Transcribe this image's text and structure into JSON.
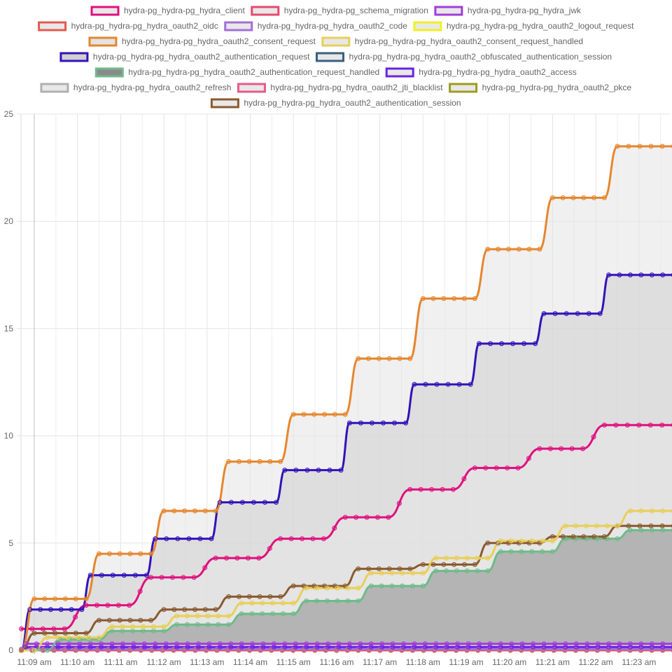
{
  "chart_data": {
    "type": "area",
    "stacked": false,
    "legend_position": "top",
    "grid": true,
    "x_labels": [
      "11:09 am",
      "11:10 am",
      "11:11 am",
      "11:12 am",
      "11:13 am",
      "11:14 am",
      "11:15 am",
      "11:16 am",
      "11:17 am",
      "11:18 am",
      "11:19 am",
      "11:20 am",
      "11:21 am",
      "11:22 am",
      "11:23 am"
    ],
    "ylim": [
      0,
      25
    ],
    "y_ticks": [
      0,
      5,
      10,
      15,
      20,
      25
    ],
    "x_minutes_range": [
      -0.3,
      14.8
    ],
    "series": [
      {
        "name": "hydra-pg_hydra-pg_hydra_client",
        "color": "#e0107e",
        "fill": "#e8e8e8",
        "points": [
          [
            -0.3,
            1.0
          ],
          [
            0.7,
            1.0
          ],
          [
            1.2,
            2.1
          ],
          [
            2.2,
            2.1
          ],
          [
            2.7,
            3.4
          ],
          [
            3.7,
            3.4
          ],
          [
            4.2,
            4.3
          ],
          [
            5.2,
            4.3
          ],
          [
            5.7,
            5.2
          ],
          [
            6.7,
            5.2
          ],
          [
            7.2,
            6.2
          ],
          [
            8.2,
            6.2
          ],
          [
            8.7,
            7.5
          ],
          [
            9.7,
            7.5
          ],
          [
            10.2,
            8.5
          ],
          [
            11.2,
            8.5
          ],
          [
            11.7,
            9.4
          ],
          [
            12.7,
            9.4
          ],
          [
            13.2,
            10.5
          ],
          [
            14.8,
            10.5
          ]
        ]
      },
      {
        "name": "hydra-pg_hydra-pg_schema_migration",
        "color": "#e8486e",
        "fill": "#e8e8e8",
        "points": [
          [
            -0.3,
            0.02
          ],
          [
            14.8,
            0.02
          ]
        ]
      },
      {
        "name": "hydra-pg_hydra-pg_hydra_jwk",
        "color": "#a33bdc",
        "fill": "#e8e8e8",
        "points": [
          [
            -0.3,
            0.0
          ],
          [
            -0.2,
            0.3
          ],
          [
            14.8,
            0.3
          ]
        ]
      },
      {
        "name": "hydra-pg_hydra-pg_hydra_oauth2_oidc",
        "color": "#e55a50",
        "fill": "#e8e8e8",
        "points": [
          [
            -0.3,
            0.0
          ],
          [
            14.8,
            0.0
          ]
        ]
      },
      {
        "name": "hydra-pg_hydra-pg_hydra_oauth2_code",
        "color": "#a26fd8",
        "fill": "#e8e8e8",
        "points": [
          [
            -0.3,
            0.05
          ],
          [
            14.8,
            0.05
          ]
        ]
      },
      {
        "name": "hydra-pg_hydra-pg_hydra_oauth2_logout_request",
        "color": "#f0f022",
        "fill": "#e8e8e8",
        "points": [
          [
            -0.3,
            0.0
          ],
          [
            14.8,
            0.0
          ]
        ]
      },
      {
        "name": "hydra-pg_hydra-pg_hydra_oauth2_consent_request",
        "color": "#e6862e",
        "fill": "#e3e3e3",
        "points": [
          [
            -0.3,
            0.0
          ],
          [
            0.0,
            2.4
          ],
          [
            1.2,
            2.4
          ],
          [
            1.5,
            4.5
          ],
          [
            2.7,
            4.5
          ],
          [
            3.0,
            6.5
          ],
          [
            4.2,
            6.5
          ],
          [
            4.5,
            8.8
          ],
          [
            5.7,
            8.8
          ],
          [
            6.0,
            11.0
          ],
          [
            7.2,
            11.0
          ],
          [
            7.5,
            13.6
          ],
          [
            8.7,
            13.6
          ],
          [
            9.0,
            16.4
          ],
          [
            10.2,
            16.4
          ],
          [
            10.5,
            18.7
          ],
          [
            11.7,
            18.7
          ],
          [
            12.0,
            21.1
          ],
          [
            13.2,
            21.1
          ],
          [
            13.5,
            23.5
          ],
          [
            14.8,
            23.5
          ]
        ]
      },
      {
        "name": "hydra-pg_hydra-pg_hydra_oauth2_consent_request_handled",
        "color": "#e8cf5a",
        "fill": "#e8e8e8",
        "points": [
          [
            -0.3,
            0.0
          ],
          [
            0.0,
            0.0
          ],
          [
            0.3,
            0.6
          ],
          [
            1.5,
            0.6
          ],
          [
            1.8,
            1.1
          ],
          [
            3.0,
            1.1
          ],
          [
            3.3,
            1.6
          ],
          [
            4.5,
            1.6
          ],
          [
            4.8,
            2.2
          ],
          [
            6.0,
            2.2
          ],
          [
            6.3,
            2.9
          ],
          [
            7.5,
            2.9
          ],
          [
            7.8,
            3.6
          ],
          [
            9.0,
            3.6
          ],
          [
            9.3,
            4.3
          ],
          [
            10.5,
            4.3
          ],
          [
            10.8,
            5.1
          ],
          [
            12.0,
            5.1
          ],
          [
            12.3,
            5.8
          ],
          [
            13.5,
            5.8
          ],
          [
            13.8,
            6.5
          ],
          [
            14.8,
            6.5
          ]
        ]
      },
      {
        "name": "hydra-pg_hydra-pg_hydra_oauth2_authentication_request",
        "color": "#3412b8",
        "fill": "#d0d0d0",
        "points": [
          [
            -0.3,
            0.0
          ],
          [
            -0.1,
            1.9
          ],
          [
            1.1,
            1.9
          ],
          [
            1.3,
            3.5
          ],
          [
            2.6,
            3.5
          ],
          [
            2.8,
            5.2
          ],
          [
            4.1,
            5.2
          ],
          [
            4.3,
            6.9
          ],
          [
            5.6,
            6.9
          ],
          [
            5.8,
            8.4
          ],
          [
            7.1,
            8.4
          ],
          [
            7.3,
            10.6
          ],
          [
            8.6,
            10.6
          ],
          [
            8.8,
            12.4
          ],
          [
            10.1,
            12.4
          ],
          [
            10.3,
            14.3
          ],
          [
            11.6,
            14.3
          ],
          [
            11.8,
            15.7
          ],
          [
            13.1,
            15.7
          ],
          [
            13.3,
            17.5
          ],
          [
            14.8,
            17.5
          ]
        ]
      },
      {
        "name": "hydra-pg_hydra-pg_hydra_oauth2_obfuscated_authentication_session",
        "color": "#3a5f7f",
        "fill": "#e8e8e8",
        "points": [
          [
            -0.3,
            0.0
          ],
          [
            14.8,
            0.0
          ]
        ]
      },
      {
        "name": "hydra-pg_hydra-pg_hydra_oauth2_authentication_request_handled",
        "color": "#6fba8a",
        "fill": "#8a8a8a",
        "points": [
          [
            -0.3,
            0.0
          ],
          [
            0.3,
            0.0
          ],
          [
            0.6,
            0.5
          ],
          [
            1.5,
            0.5
          ],
          [
            1.8,
            0.9
          ],
          [
            3.0,
            0.9
          ],
          [
            3.3,
            1.2
          ],
          [
            4.5,
            1.2
          ],
          [
            4.8,
            1.7
          ],
          [
            6.0,
            1.7
          ],
          [
            6.3,
            2.3
          ],
          [
            7.5,
            2.3
          ],
          [
            7.8,
            3.0
          ],
          [
            9.0,
            3.0
          ],
          [
            9.3,
            3.7
          ],
          [
            10.5,
            3.7
          ],
          [
            10.8,
            4.6
          ],
          [
            12.0,
            4.6
          ],
          [
            12.3,
            5.2
          ],
          [
            13.5,
            5.2
          ],
          [
            13.8,
            5.6
          ],
          [
            14.8,
            5.6
          ]
        ]
      },
      {
        "name": "hydra-pg_hydra-pg_hydra_oauth2_access",
        "color": "#6a22e0",
        "fill": "#e8e8e8",
        "points": [
          [
            -0.3,
            0.0
          ],
          [
            -0.2,
            0.15
          ],
          [
            14.8,
            0.15
          ]
        ]
      },
      {
        "name": "hydra-pg_hydra-pg_hydra_oauth2_refresh",
        "color": "#b0b0b0",
        "fill": "#e8e8e8",
        "points": [
          [
            -0.3,
            0.0
          ],
          [
            14.8,
            0.0
          ]
        ]
      },
      {
        "name": "hydra-pg_hydra-pg_hydra_oauth2_jti_blacklist",
        "color": "#e85a8a",
        "fill": "#e8e8e8",
        "points": [
          [
            -0.3,
            0.0
          ],
          [
            14.8,
            0.0
          ]
        ]
      },
      {
        "name": "hydra-pg_hydra-pg_hydra_oauth2_pkce",
        "color": "#9c9c20",
        "fill": "#e8e8e8",
        "points": [
          [
            -0.3,
            0.0
          ],
          [
            14.8,
            0.0
          ]
        ]
      },
      {
        "name": "hydra-pg_hydra-pg_hydra_oauth2_authentication_session",
        "color": "#8a5a30",
        "fill": "#e8e8e8",
        "points": [
          [
            -0.3,
            0.0
          ],
          [
            0.0,
            0.8
          ],
          [
            1.2,
            0.8
          ],
          [
            1.5,
            1.4
          ],
          [
            2.7,
            1.4
          ],
          [
            3.0,
            1.9
          ],
          [
            4.2,
            1.9
          ],
          [
            4.5,
            2.5
          ],
          [
            5.7,
            2.5
          ],
          [
            6.0,
            3.0
          ],
          [
            7.2,
            3.0
          ],
          [
            7.5,
            3.8
          ],
          [
            8.7,
            3.8
          ],
          [
            9.0,
            4.0
          ],
          [
            10.2,
            4.0
          ],
          [
            10.5,
            5.0
          ],
          [
            11.7,
            5.0
          ],
          [
            12.0,
            5.3
          ],
          [
            13.2,
            5.3
          ],
          [
            13.5,
            5.8
          ],
          [
            14.8,
            5.8
          ]
        ]
      }
    ]
  }
}
